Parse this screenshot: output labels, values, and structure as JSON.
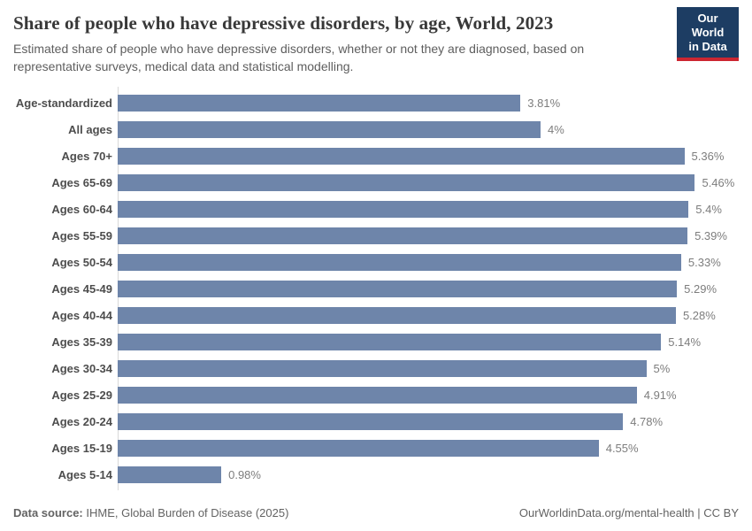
{
  "header": {
    "title": "Share of people who have depressive disorders, by age, World, 2023",
    "subtitle": "Estimated share of people who have depressive disorders, whether or not they are diagnosed, based on representative surveys, medical data and statistical modelling.",
    "logo": {
      "line1": "Our World",
      "line2": "in Data",
      "bg": "#1d3d63",
      "accent": "#cc2631"
    }
  },
  "chart_data": {
    "type": "bar",
    "orientation": "horizontal",
    "title": "Share of people who have depressive disorders, by age, World, 2023",
    "categories": [
      "Age-standardized",
      "All ages",
      "Ages 70+",
      "Ages 65-69",
      "Ages 60-64",
      "Ages 55-59",
      "Ages 50-54",
      "Ages 45-49",
      "Ages 40-44",
      "Ages 35-39",
      "Ages 30-34",
      "Ages 25-29",
      "Ages 20-24",
      "Ages 15-19",
      "Ages 5-14"
    ],
    "values": [
      3.81,
      4,
      5.36,
      5.46,
      5.4,
      5.39,
      5.33,
      5.29,
      5.28,
      5.14,
      5,
      4.91,
      4.78,
      4.55,
      0.98
    ],
    "value_labels": [
      "3.81%",
      "4%",
      "5.36%",
      "5.46%",
      "5.4%",
      "5.39%",
      "5.33%",
      "5.29%",
      "5.28%",
      "5.14%",
      "5%",
      "4.91%",
      "4.78%",
      "4.55%",
      "0.98%"
    ],
    "unit": "%",
    "xlim": [
      0,
      6
    ],
    "bar_color": "#6e85aa",
    "axis_color": "#d9d9d9",
    "grid": false,
    "legend": false
  },
  "footer": {
    "source_label": "Data source:",
    "source_text": "IHME, Global Burden of Disease (2025)",
    "credit": "OurWorldinData.org/mental-health | CC BY"
  }
}
